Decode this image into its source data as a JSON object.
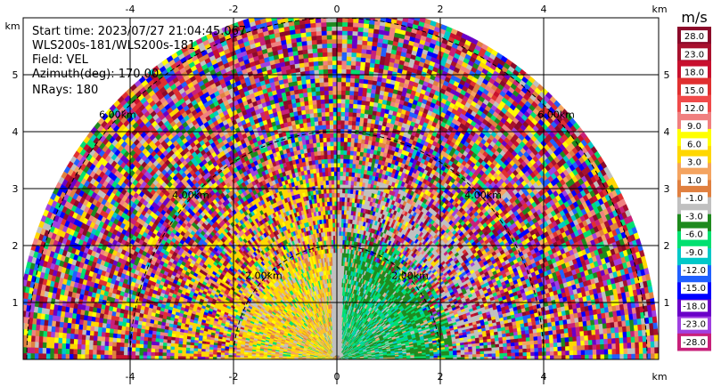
{
  "chart_data": {
    "type": "heatmap",
    "subtype": "rhi-ppi-radar-scan",
    "info": {
      "start_time": "Start time: 2023/07/27 21:04:45.067",
      "instrument": "WLS200s-181/WLS200s-181",
      "field": "Field: VEL",
      "azimuth": "Azimuth(deg): 170.00",
      "nrays": "NRays: 180"
    },
    "axes": {
      "x_unit": "km",
      "y_unit": "km",
      "xlim": [
        -6,
        6
      ],
      "ylim": [
        0,
        6
      ],
      "x_ticks": [
        -4,
        -2,
        0,
        2,
        4
      ],
      "y_ticks": [
        1,
        2,
        3,
        4,
        5
      ],
      "grid": true
    },
    "range_rings": [
      {
        "radius_km": 2,
        "label": "2.00km"
      },
      {
        "radius_km": 4,
        "label": "4.00km"
      },
      {
        "radius_km": 6,
        "label": "6.00km"
      }
    ],
    "colorbar": {
      "title": "m/s",
      "labels": [
        "28.0",
        "23.0",
        "18.0",
        "15.0",
        "12.0",
        "9.0",
        "6.0",
        "3.0",
        "1.0",
        "-1.0",
        "-3.0",
        "-6.0",
        "-9.0",
        "-12.0",
        "-15.0",
        "-18.0",
        "-23.0",
        "-28.0"
      ],
      "colors": [
        "#8b0a2a",
        "#a8112e",
        "#c8102e",
        "#e03030",
        "#f04a4a",
        "#f08080",
        "#ffff00",
        "#ffd700",
        "#f4a460",
        "#e08040",
        "#c0c0c0",
        "#1e8a1e",
        "#00e070",
        "#00c8c8",
        "#2060ff",
        "#0000ff",
        "#6a00c8",
        "#a040e0",
        "#c8207a"
      ]
    },
    "velocity_field": {
      "near_range_km": 2.2,
      "near_left_dominant": "positive (yellow/orange)",
      "near_right_dominant": "negative (green/teal)",
      "far_range": "noise"
    }
  }
}
